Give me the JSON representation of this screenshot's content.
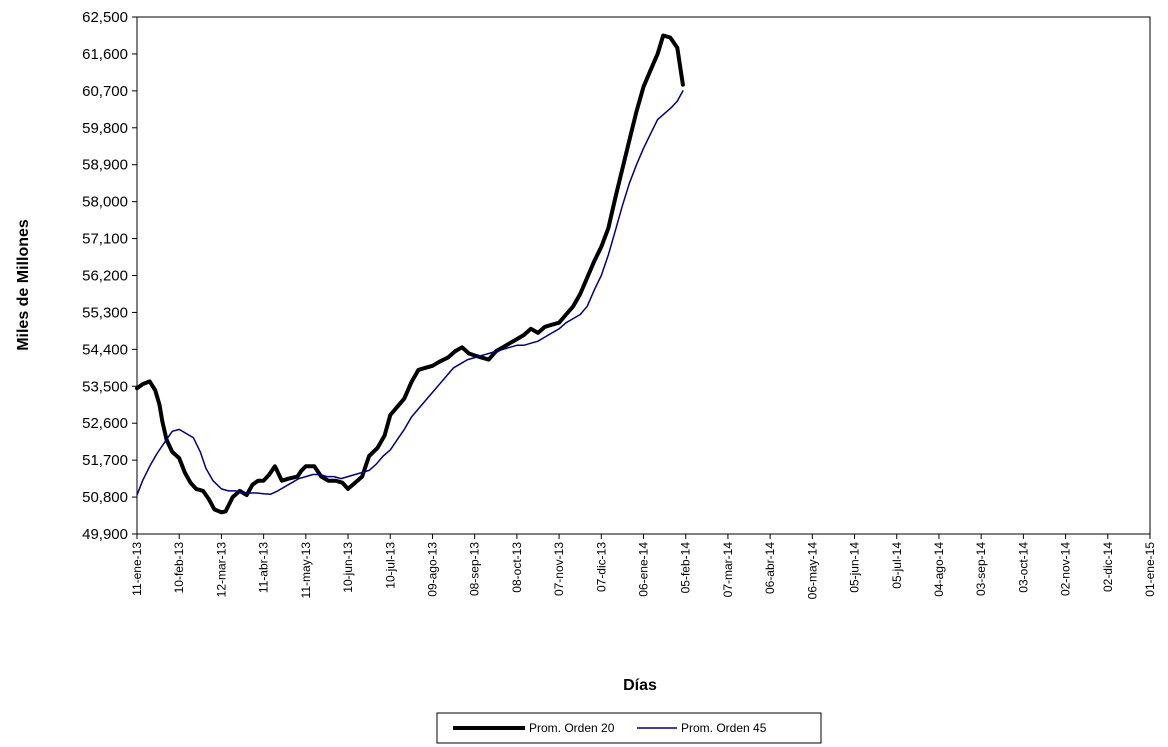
{
  "chart_data": {
    "type": "line",
    "xlabel": "Días",
    "ylabel": "Miles de Millones",
    "ylim": [
      49900,
      62500
    ],
    "yticks": [
      "49,900",
      "50,800",
      "51,700",
      "52,600",
      "53,500",
      "54,400",
      "55,300",
      "56,200",
      "57,100",
      "58,000",
      "58,900",
      "59,800",
      "60,700",
      "61,600",
      "62,500"
    ],
    "ytick_values": [
      49900,
      50800,
      51700,
      52600,
      53500,
      54400,
      55300,
      56200,
      57100,
      58000,
      58900,
      59800,
      60700,
      61600,
      62500
    ],
    "x_axis_start": "11-ene-13",
    "x_axis_end": "01-ene-15",
    "xticks": [
      "11-ene-13",
      "10-feb-13",
      "12-mar-13",
      "11-abr-13",
      "11-may-13",
      "10-jun-13",
      "10-jul-13",
      "09-ago-13",
      "08-sep-13",
      "08-oct-13",
      "07-nov-13",
      "07-dic-13",
      "06-ene-14",
      "05-feb-14",
      "07-mar-14",
      "06-abr-14",
      "06-may-14",
      "05-jun-14",
      "05-jul-14",
      "04-ago-14",
      "03-sep-14",
      "03-oct-14",
      "02-nov-14",
      "02-dic-14",
      "01-ene-15"
    ],
    "grid": false,
    "legend_position": "bottom-center",
    "series": [
      {
        "name": "Prom. Orden 20",
        "color": "#000000",
        "line_weight": "thick",
        "points": [
          [
            "11-ene-13",
            53450
          ],
          [
            "15-ene-13",
            53550
          ],
          [
            "20-ene-13",
            53620
          ],
          [
            "24-ene-13",
            53400
          ],
          [
            "27-ene-13",
            53050
          ],
          [
            "29-ene-13",
            52650
          ],
          [
            "01-feb-13",
            52200
          ],
          [
            "05-feb-13",
            51900
          ],
          [
            "10-feb-13",
            51750
          ],
          [
            "14-feb-13",
            51400
          ],
          [
            "18-feb-13",
            51150
          ],
          [
            "22-feb-13",
            51000
          ],
          [
            "27-feb-13",
            50950
          ],
          [
            "03-mar-13",
            50750
          ],
          [
            "07-mar-13",
            50500
          ],
          [
            "12-mar-13",
            50430
          ],
          [
            "15-mar-13",
            50450
          ],
          [
            "20-mar-13",
            50800
          ],
          [
            "25-mar-13",
            50950
          ],
          [
            "30-mar-13",
            50850
          ],
          [
            "03-abr-13",
            51100
          ],
          [
            "07-abr-13",
            51200
          ],
          [
            "11-abr-13",
            51200
          ],
          [
            "15-abr-13",
            51350
          ],
          [
            "19-abr-13",
            51550
          ],
          [
            "24-abr-13",
            51200
          ],
          [
            "29-abr-13",
            51250
          ],
          [
            "05-may-13",
            51300
          ],
          [
            "08-may-13",
            51450
          ],
          [
            "11-may-13",
            51550
          ],
          [
            "17-may-13",
            51550
          ],
          [
            "22-may-13",
            51300
          ],
          [
            "27-may-13",
            51200
          ],
          [
            "01-jun-13",
            51200
          ],
          [
            "06-jun-13",
            51150
          ],
          [
            "10-jun-13",
            51000
          ],
          [
            "15-jun-13",
            51150
          ],
          [
            "20-jun-13",
            51300
          ],
          [
            "25-jun-13",
            51800
          ],
          [
            "01-jul-13",
            52000
          ],
          [
            "06-jul-13",
            52300
          ],
          [
            "10-jul-13",
            52800
          ],
          [
            "15-jul-13",
            53000
          ],
          [
            "20-jul-13",
            53200
          ],
          [
            "25-jul-13",
            53600
          ],
          [
            "30-jul-13",
            53900
          ],
          [
            "04-ago-13",
            53950
          ],
          [
            "09-ago-13",
            54000
          ],
          [
            "14-ago-13",
            54100
          ],
          [
            "20-ago-13",
            54200
          ],
          [
            "25-ago-13",
            54350
          ],
          [
            "30-ago-13",
            54450
          ],
          [
            "04-sep-13",
            54300
          ],
          [
            "08-sep-13",
            54250
          ],
          [
            "13-sep-13",
            54200
          ],
          [
            "18-sep-13",
            54150
          ],
          [
            "23-sep-13",
            54350
          ],
          [
            "28-sep-13",
            54450
          ],
          [
            "03-oct-13",
            54550
          ],
          [
            "08-oct-13",
            54650
          ],
          [
            "13-oct-13",
            54750
          ],
          [
            "18-oct-13",
            54900
          ],
          [
            "23-oct-13",
            54800
          ],
          [
            "28-oct-13",
            54950
          ],
          [
            "02-nov-13",
            55000
          ],
          [
            "07-nov-13",
            55050
          ],
          [
            "12-nov-13",
            55250
          ],
          [
            "17-nov-13",
            55450
          ],
          [
            "22-nov-13",
            55750
          ],
          [
            "27-nov-13",
            56150
          ],
          [
            "02-dic-13",
            56550
          ],
          [
            "07-dic-13",
            56900
          ],
          [
            "12-dic-13",
            57350
          ],
          [
            "17-dic-13",
            58100
          ],
          [
            "22-dic-13",
            58800
          ],
          [
            "27-dic-13",
            59500
          ],
          [
            "01-ene-14",
            60200
          ],
          [
            "06-ene-14",
            60800
          ],
          [
            "11-ene-14",
            61200
          ],
          [
            "16-ene-14",
            61600
          ],
          [
            "20-ene-14",
            62050
          ],
          [
            "25-ene-14",
            62000
          ],
          [
            "30-ene-14",
            61750
          ],
          [
            "03-feb-14",
            60850
          ]
        ]
      },
      {
        "name": "Prom. Orden 45",
        "color": "#000080",
        "line_weight": "thin",
        "points": [
          [
            "11-ene-13",
            50850
          ],
          [
            "15-ene-13",
            51200
          ],
          [
            "20-ene-13",
            51550
          ],
          [
            "25-ene-13",
            51850
          ],
          [
            "01-feb-13",
            52200
          ],
          [
            "05-feb-13",
            52400
          ],
          [
            "10-feb-13",
            52450
          ],
          [
            "15-feb-13",
            52350
          ],
          [
            "20-feb-13",
            52250
          ],
          [
            "25-feb-13",
            51900
          ],
          [
            "01-mar-13",
            51500
          ],
          [
            "06-mar-13",
            51200
          ],
          [
            "12-mar-13",
            51000
          ],
          [
            "17-mar-13",
            50950
          ],
          [
            "22-mar-13",
            50950
          ],
          [
            "27-mar-13",
            50900
          ],
          [
            "01-abr-13",
            50900
          ],
          [
            "06-abr-13",
            50900
          ],
          [
            "11-abr-13",
            50880
          ],
          [
            "16-abr-13",
            50870
          ],
          [
            "21-abr-13",
            50950
          ],
          [
            "26-abr-13",
            51050
          ],
          [
            "01-may-13",
            51150
          ],
          [
            "06-may-13",
            51250
          ],
          [
            "11-may-13",
            51300
          ],
          [
            "16-may-13",
            51350
          ],
          [
            "21-may-13",
            51350
          ],
          [
            "26-may-13",
            51300
          ],
          [
            "31-may-13",
            51300
          ],
          [
            "05-jun-13",
            51250
          ],
          [
            "10-jun-13",
            51300
          ],
          [
            "15-jun-13",
            51350
          ],
          [
            "20-jun-13",
            51400
          ],
          [
            "25-jun-13",
            51450
          ],
          [
            "30-jun-13",
            51600
          ],
          [
            "05-jul-13",
            51800
          ],
          [
            "10-jul-13",
            51950
          ],
          [
            "15-jul-13",
            52200
          ],
          [
            "20-jul-13",
            52450
          ],
          [
            "25-jul-13",
            52750
          ],
          [
            "30-jul-13",
            52950
          ],
          [
            "04-ago-13",
            53150
          ],
          [
            "09-ago-13",
            53350
          ],
          [
            "14-ago-13",
            53550
          ],
          [
            "19-ago-13",
            53750
          ],
          [
            "24-ago-13",
            53950
          ],
          [
            "29-ago-13",
            54050
          ],
          [
            "03-sep-13",
            54150
          ],
          [
            "08-sep-13",
            54200
          ],
          [
            "13-sep-13",
            54250
          ],
          [
            "18-sep-13",
            54300
          ],
          [
            "23-sep-13",
            54350
          ],
          [
            "28-sep-13",
            54400
          ],
          [
            "03-oct-13",
            54450
          ],
          [
            "08-oct-13",
            54500
          ],
          [
            "13-oct-13",
            54500
          ],
          [
            "18-oct-13",
            54550
          ],
          [
            "23-oct-13",
            54600
          ],
          [
            "28-oct-13",
            54700
          ],
          [
            "02-nov-13",
            54800
          ],
          [
            "07-nov-13",
            54900
          ],
          [
            "12-nov-13",
            55050
          ],
          [
            "17-nov-13",
            55150
          ],
          [
            "22-nov-13",
            55250
          ],
          [
            "27-nov-13",
            55450
          ],
          [
            "02-dic-13",
            55850
          ],
          [
            "07-dic-13",
            56200
          ],
          [
            "12-dic-13",
            56700
          ],
          [
            "17-dic-13",
            57300
          ],
          [
            "22-dic-13",
            57900
          ],
          [
            "27-dic-13",
            58450
          ],
          [
            "01-ene-14",
            58900
          ],
          [
            "06-ene-14",
            59300
          ],
          [
            "11-ene-14",
            59650
          ],
          [
            "16-ene-14",
            60000
          ],
          [
            "21-ene-14",
            60150
          ],
          [
            "26-ene-14",
            60300
          ],
          [
            "30-ene-14",
            60450
          ],
          [
            "03-feb-14",
            60700
          ]
        ]
      }
    ]
  }
}
